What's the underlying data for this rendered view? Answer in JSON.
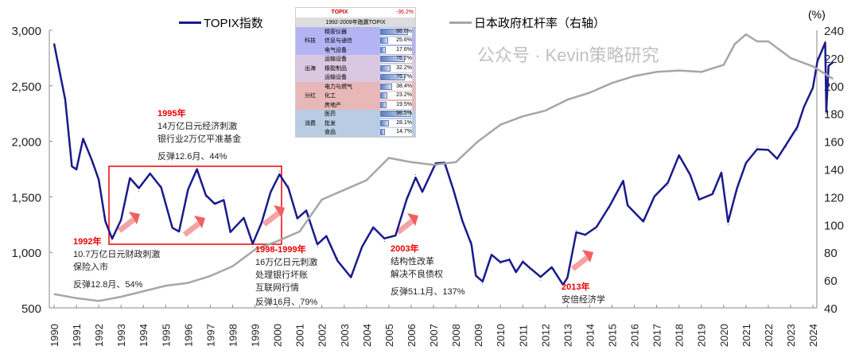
{
  "legend": {
    "topix": "TOPIX指数",
    "leverage": "日本政府杠杆率（右轴）",
    "unit": "(%)"
  },
  "chart_data": {
    "type": "line",
    "xlim": [
      1990,
      2025
    ],
    "x_ticks": [
      "1990",
      "1991",
      "1992",
      "1993",
      "1994",
      "1995",
      "1996",
      "1997",
      "1998",
      "1999",
      "2000",
      "2001",
      "2002",
      "2003",
      "2004",
      "2005",
      "2006",
      "2007",
      "2008",
      "2009",
      "2010",
      "2011",
      "2012",
      "2013",
      "2014",
      "2015",
      "2016",
      "2017",
      "2018",
      "2019",
      "2020",
      "2021",
      "2022",
      "2023",
      "2024"
    ],
    "left_axis": {
      "range": [
        500,
        3000
      ],
      "ticks": [
        "500",
        "1,000",
        "1,500",
        "2,000",
        "2,500",
        "3,000"
      ]
    },
    "right_axis": {
      "range": [
        40,
        240
      ],
      "ticks": [
        "40",
        "60",
        "80",
        "100",
        "120",
        "140",
        "160",
        "180",
        "200",
        "220",
        "240"
      ]
    },
    "series": [
      {
        "name": "TOPIX指数",
        "axis": "left",
        "color": "#1a1a8c",
        "x": [
          1990,
          1990.5,
          1990.8,
          1991,
          1991.3,
          1991.7,
          1992,
          1992.3,
          1992.6,
          1993,
          1993.4,
          1993.8,
          1994.3,
          1994.8,
          1995.3,
          1995.6,
          1996,
          1996.4,
          1996.8,
          1997.2,
          1997.6,
          1997.9,
          1998.5,
          1998.9,
          1999.3,
          1999.7,
          2000.1,
          2000.5,
          2000.9,
          2001.3,
          2001.8,
          2002.2,
          2002.7,
          2003.3,
          2003.8,
          2004.3,
          2004.8,
          2005.3,
          2005.8,
          2006.2,
          2006.5,
          2007.1,
          2007.5,
          2007.9,
          2008.3,
          2008.7,
          2008.9,
          2009.2,
          2009.6,
          2010,
          2010.4,
          2010.7,
          2011,
          2011.3,
          2011.8,
          2012.3,
          2012.8,
          2013,
          2013.4,
          2013.8,
          2014.3,
          2014.9,
          2015.5,
          2015.7,
          2016.4,
          2016.9,
          2017.5,
          2018,
          2018.5,
          2018.9,
          2019.5,
          2019.9,
          2020.2,
          2020.6,
          2021,
          2021.5,
          2022,
          2022.4,
          2022.8,
          2023.3,
          2023.6,
          2024,
          2024.2,
          2024.55,
          2024.6,
          2024.7,
          2024.9
        ],
        "values": [
          2880,
          2400,
          1800,
          1750,
          2000,
          1800,
          1650,
          1300,
          1150,
          1300,
          1650,
          1550,
          1700,
          1600,
          1250,
          1200,
          1550,
          1720,
          1500,
          1450,
          1500,
          1200,
          1300,
          1050,
          1250,
          1550,
          1730,
          1600,
          1300,
          1350,
          1050,
          1150,
          950,
          800,
          1050,
          1200,
          1100,
          1150,
          1500,
          1700,
          1550,
          1780,
          1780,
          1550,
          1300,
          1100,
          800,
          720,
          950,
          900,
          950,
          850,
          930,
          850,
          750,
          850,
          720,
          800,
          1200,
          1150,
          1200,
          1400,
          1650,
          1450,
          1300,
          1500,
          1600,
          1850,
          1700,
          1500,
          1550,
          1720,
          1250,
          1550,
          1800,
          1950,
          1950,
          1850,
          1950,
          2100,
          2300,
          2500,
          2750,
          2900,
          2250,
          2650,
          2700
        ]
      },
      {
        "name": "日本政府杠杆率（右轴）",
        "axis": "right",
        "color": "#a6a6a6",
        "x": [
          1990,
          1991,
          1992,
          1993,
          1994,
          1995,
          1996,
          1997,
          1998,
          1999,
          2000,
          2001,
          2002,
          2003,
          2004,
          2005,
          2006,
          2007,
          2008,
          2009,
          2010,
          2011,
          2012,
          2013,
          2014,
          2015,
          2016,
          2017,
          2018,
          2019,
          2020,
          2020.5,
          2021,
          2021.5,
          2022,
          2023,
          2024,
          2024.9
        ],
        "values": [
          50,
          47,
          45,
          48,
          52,
          56,
          58,
          63,
          70,
          82,
          88,
          95,
          118,
          125,
          132,
          148,
          145,
          143,
          145,
          160,
          172,
          178,
          182,
          190,
          195,
          202,
          207,
          210,
          211,
          210,
          215,
          230,
          237,
          232,
          232,
          220,
          214,
          205
        ]
      }
    ]
  },
  "annotations": [
    {
      "year": "1992年",
      "lines": [
        "10.7万亿日元财政刺激",
        "保险入市"
      ],
      "rebound": "反弹12.8月、54%"
    },
    {
      "year": "1995年",
      "lines": [
        "14万亿日元经济刺激",
        "银行业2万亿平准基金"
      ],
      "rebound": "反弹12.6月、44%"
    },
    {
      "year": "1998-1999年",
      "lines": [
        "16万亿日元刺激",
        "处理银行坏账",
        "互联网行情"
      ],
      "rebound": "反弹16月、79%"
    },
    {
      "year": "2003年",
      "lines": [
        "结构性改革",
        "解决不良债权"
      ],
      "rebound": "反弹51.1月、137%"
    },
    {
      "year": "2013年",
      "lines": [
        "安倍经济学"
      ],
      "rebound": ""
    }
  ],
  "inset": {
    "topix_label": "TOPIX",
    "topix_value": "-36.2%",
    "subtitle": "1992-2009年跑赢TOPIX",
    "groups": [
      {
        "name": "科技",
        "color": "#b4b4f5",
        "items": [
          {
            "name": "精密仪器",
            "value": 88.6,
            "label": "88.6%"
          },
          {
            "name": "信息与通信",
            "value": 25.6,
            "label": "25.6%"
          },
          {
            "name": "电气设备",
            "value": 17.6,
            "label": "17.6%"
          }
        ]
      },
      {
        "name": "出海",
        "color": "#d9c8e0",
        "items": [
          {
            "name": "运输设备",
            "value": 76.7,
            "label": "76.7%"
          },
          {
            "name": "橡胶制品",
            "value": 32.2,
            "label": "32.2%"
          },
          {
            "name": "运输设备",
            "value": 76.7,
            "label": "76.7%"
          }
        ]
      },
      {
        "name": "分红",
        "color": "#e8b8b8",
        "items": [
          {
            "name": "电力与燃气",
            "value": 38.4,
            "label": "38.4%"
          },
          {
            "name": "化工",
            "value": 23.2,
            "label": "23.2%"
          },
          {
            "name": "房地产",
            "value": 19.5,
            "label": "19.5%"
          }
        ]
      },
      {
        "name": "消费",
        "color": "#b8cce4",
        "items": [
          {
            "name": "医药",
            "value": 98.5,
            "label": "98.5%"
          },
          {
            "name": "批发",
            "value": 28.1,
            "label": "28.1%"
          },
          {
            "name": "食品",
            "value": 14.7,
            "label": "14.7%"
          }
        ]
      }
    ]
  },
  "watermark": "公众号 · Kevin策略研究"
}
